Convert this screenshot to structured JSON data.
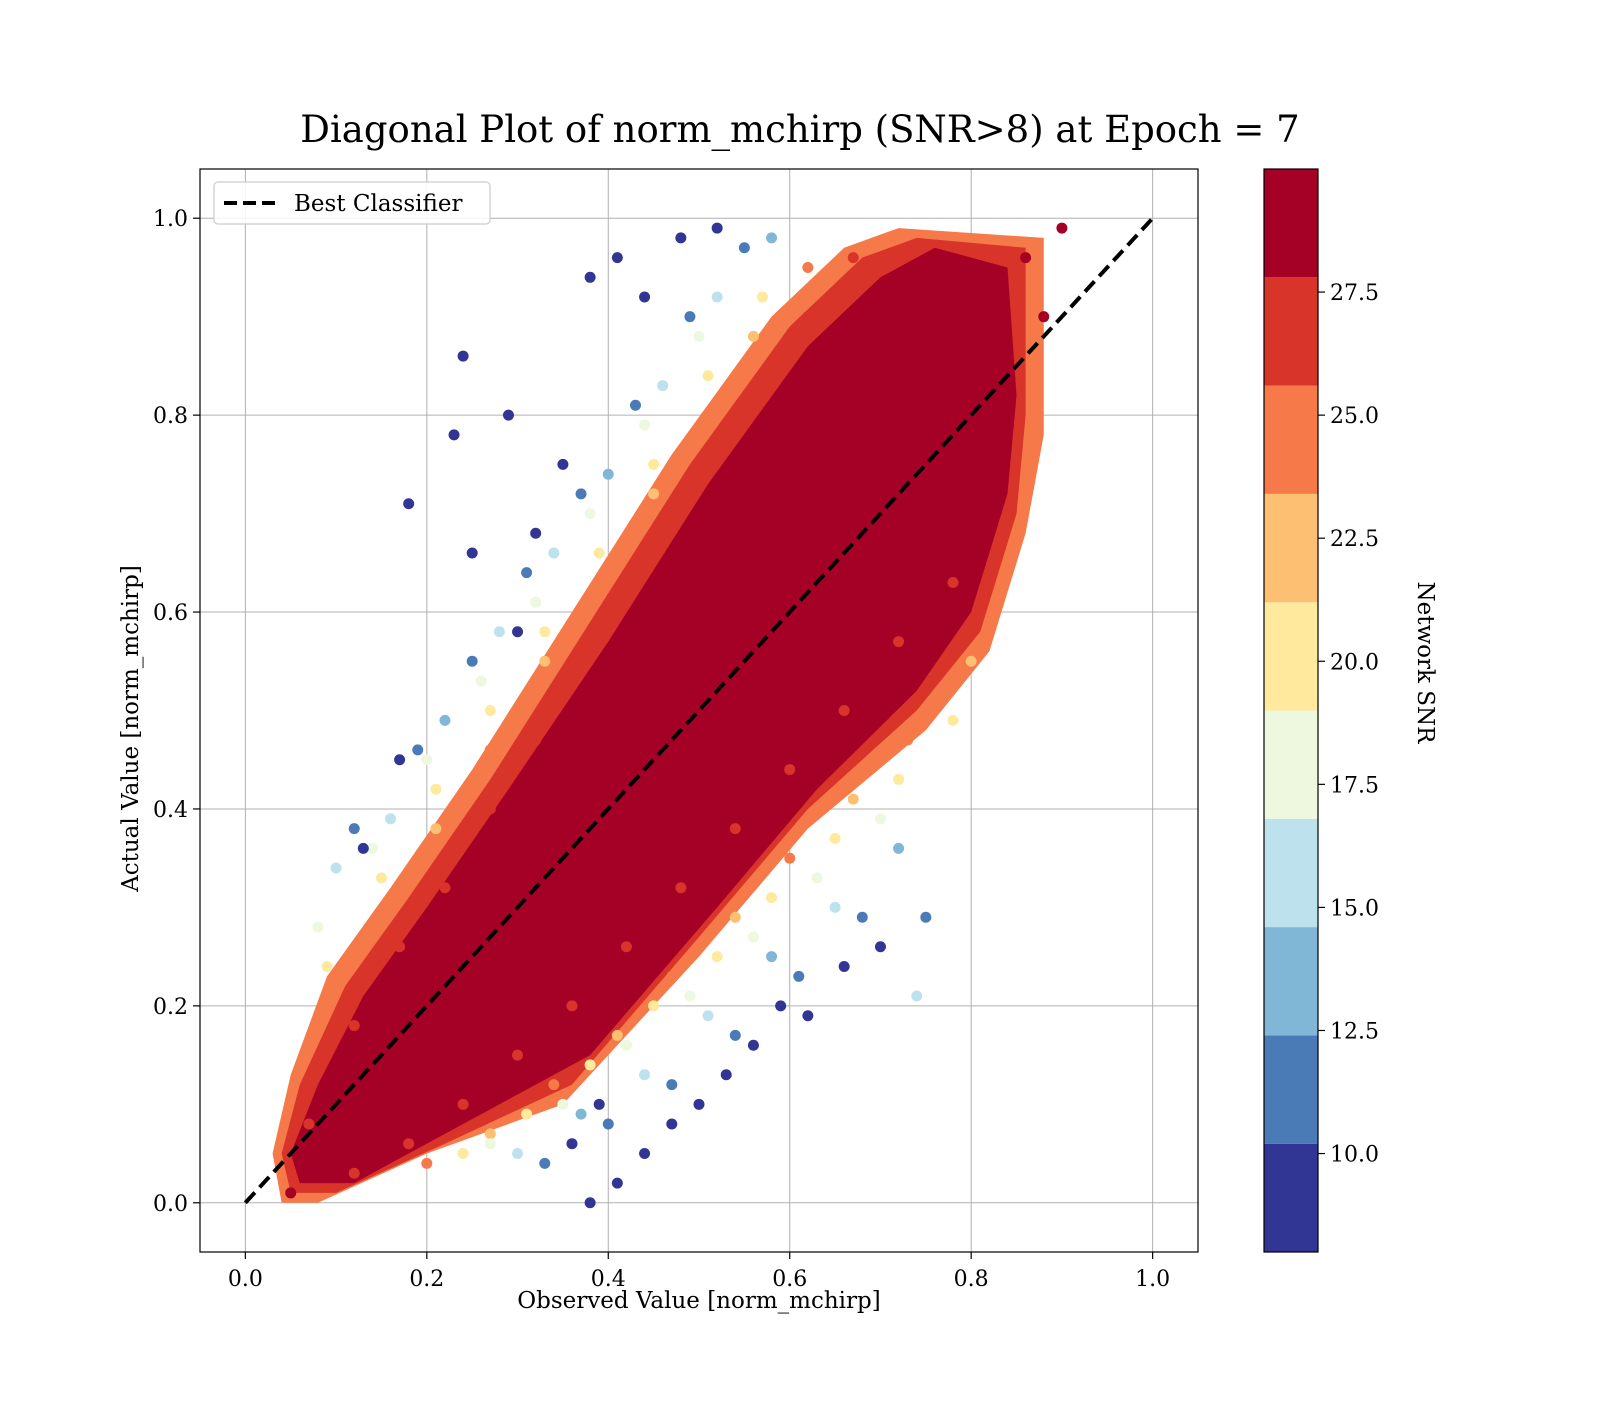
{
  "chart_data": {
    "type": "scatter",
    "title": "Diagonal Plot of norm_mchirp (SNR>8) at Epoch = 7",
    "xlabel": "Observed Value [norm_mchirp]",
    "ylabel": "Actual Value [norm_mchirp]",
    "xlim": [
      -0.05,
      1.05
    ],
    "ylim": [
      -0.05,
      1.05
    ],
    "x_ticks": [
      "0.0",
      "0.2",
      "0.4",
      "0.6",
      "0.8",
      "1.0"
    ],
    "y_ticks": [
      "0.0",
      "0.2",
      "0.4",
      "0.6",
      "0.8",
      "1.0"
    ],
    "grid": true,
    "legend": {
      "position": "top-left",
      "entries": [
        "Best Classifier"
      ]
    },
    "reference_line": {
      "name": "Best Classifier",
      "from": [
        0.0,
        0.0
      ],
      "to": [
        1.0,
        1.0
      ],
      "style": "dashed",
      "color": "#000000"
    },
    "colorbar": {
      "label": "Network SNR",
      "range": [
        8,
        30
      ],
      "bins": [
        {
          "from": 8.0,
          "to": 10.2,
          "color": "#313695"
        },
        {
          "from": 10.2,
          "to": 12.4,
          "color": "#4a7bb7"
        },
        {
          "from": 12.4,
          "to": 14.6,
          "color": "#80b6d6"
        },
        {
          "from": 14.6,
          "to": 16.8,
          "color": "#bde2ee"
        },
        {
          "from": 16.8,
          "to": 19.0,
          "color": "#eef8df"
        },
        {
          "from": 19.0,
          "to": 21.2,
          "color": "#fee99d"
        },
        {
          "from": 21.2,
          "to": 23.4,
          "color": "#fdbf71"
        },
        {
          "from": 23.4,
          "to": 25.6,
          "color": "#f57949"
        },
        {
          "from": 25.6,
          "to": 27.8,
          "color": "#d93429"
        },
        {
          "from": 27.8,
          "to": 30.0,
          "color": "#a50026"
        }
      ],
      "ticks": [
        "10.0",
        "12.5",
        "15.0",
        "17.5",
        "20.0",
        "22.5",
        "25.0",
        "27.5"
      ]
    },
    "series": [
      {
        "color_by": "Network SNR",
        "points": [
          [
            0.05,
            0.01,
            30
          ],
          [
            0.06,
            0.04,
            30
          ],
          [
            0.08,
            0.06,
            29
          ],
          [
            0.1,
            0.12,
            30
          ],
          [
            0.12,
            0.1,
            30
          ],
          [
            0.14,
            0.18,
            30
          ],
          [
            0.15,
            0.13,
            30
          ],
          [
            0.18,
            0.22,
            30
          ],
          [
            0.2,
            0.18,
            30
          ],
          [
            0.22,
            0.26,
            30
          ],
          [
            0.25,
            0.22,
            30
          ],
          [
            0.28,
            0.32,
            30
          ],
          [
            0.3,
            0.26,
            30
          ],
          [
            0.33,
            0.37,
            30
          ],
          [
            0.35,
            0.32,
            30
          ],
          [
            0.38,
            0.43,
            30
          ],
          [
            0.4,
            0.37,
            30
          ],
          [
            0.43,
            0.47,
            30
          ],
          [
            0.45,
            0.42,
            30
          ],
          [
            0.48,
            0.53,
            30
          ],
          [
            0.5,
            0.47,
            30
          ],
          [
            0.53,
            0.58,
            30
          ],
          [
            0.55,
            0.52,
            30
          ],
          [
            0.58,
            0.63,
            30
          ],
          [
            0.6,
            0.57,
            30
          ],
          [
            0.63,
            0.68,
            30
          ],
          [
            0.65,
            0.62,
            30
          ],
          [
            0.68,
            0.73,
            30
          ],
          [
            0.7,
            0.68,
            30
          ],
          [
            0.73,
            0.78,
            30
          ],
          [
            0.75,
            0.73,
            30
          ],
          [
            0.78,
            0.84,
            30
          ],
          [
            0.8,
            0.78,
            30
          ],
          [
            0.82,
            0.9,
            30
          ],
          [
            0.84,
            0.86,
            30
          ],
          [
            0.86,
            0.96,
            29
          ],
          [
            0.88,
            0.9,
            29
          ],
          [
            0.9,
            0.99,
            29
          ],
          [
            0.07,
            0.08,
            27
          ],
          [
            0.12,
            0.18,
            26
          ],
          [
            0.17,
            0.26,
            26
          ],
          [
            0.22,
            0.32,
            27
          ],
          [
            0.27,
            0.4,
            26
          ],
          [
            0.32,
            0.47,
            26
          ],
          [
            0.37,
            0.55,
            27
          ],
          [
            0.42,
            0.62,
            26
          ],
          [
            0.47,
            0.7,
            26
          ],
          [
            0.52,
            0.77,
            27
          ],
          [
            0.57,
            0.83,
            26
          ],
          [
            0.62,
            0.9,
            26
          ],
          [
            0.67,
            0.96,
            27
          ],
          [
            0.12,
            0.03,
            27
          ],
          [
            0.18,
            0.06,
            26
          ],
          [
            0.24,
            0.1,
            26
          ],
          [
            0.3,
            0.15,
            27
          ],
          [
            0.36,
            0.2,
            26
          ],
          [
            0.42,
            0.26,
            26
          ],
          [
            0.48,
            0.32,
            27
          ],
          [
            0.54,
            0.38,
            26
          ],
          [
            0.6,
            0.44,
            26
          ],
          [
            0.66,
            0.5,
            27
          ],
          [
            0.72,
            0.57,
            26
          ],
          [
            0.78,
            0.63,
            26
          ],
          [
            0.84,
            0.7,
            27
          ],
          [
            0.1,
            0.22,
            24
          ],
          [
            0.16,
            0.3,
            24
          ],
          [
            0.21,
            0.38,
            23
          ],
          [
            0.27,
            0.46,
            24
          ],
          [
            0.33,
            0.55,
            23
          ],
          [
            0.39,
            0.63,
            24
          ],
          [
            0.45,
            0.72,
            23
          ],
          [
            0.51,
            0.8,
            24
          ],
          [
            0.56,
            0.88,
            23
          ],
          [
            0.62,
            0.95,
            24
          ],
          [
            0.2,
            0.04,
            24
          ],
          [
            0.27,
            0.07,
            23
          ],
          [
            0.34,
            0.12,
            24
          ],
          [
            0.41,
            0.17,
            23
          ],
          [
            0.47,
            0.23,
            24
          ],
          [
            0.54,
            0.29,
            23
          ],
          [
            0.6,
            0.35,
            24
          ],
          [
            0.67,
            0.41,
            23
          ],
          [
            0.73,
            0.47,
            24
          ],
          [
            0.8,
            0.55,
            23
          ],
          [
            0.09,
            0.24,
            20
          ],
          [
            0.15,
            0.33,
            21
          ],
          [
            0.21,
            0.42,
            20
          ],
          [
            0.27,
            0.5,
            19
          ],
          [
            0.33,
            0.58,
            20
          ],
          [
            0.39,
            0.66,
            21
          ],
          [
            0.45,
            0.75,
            20
          ],
          [
            0.51,
            0.84,
            19
          ],
          [
            0.57,
            0.92,
            20
          ],
          [
            0.24,
            0.05,
            20
          ],
          [
            0.31,
            0.09,
            21
          ],
          [
            0.38,
            0.14,
            20
          ],
          [
            0.45,
            0.2,
            19
          ],
          [
            0.52,
            0.25,
            20
          ],
          [
            0.58,
            0.31,
            21
          ],
          [
            0.65,
            0.37,
            20
          ],
          [
            0.72,
            0.43,
            19
          ],
          [
            0.78,
            0.49,
            20
          ],
          [
            0.08,
            0.28,
            17
          ],
          [
            0.14,
            0.36,
            18
          ],
          [
            0.2,
            0.45,
            17
          ],
          [
            0.26,
            0.53,
            18
          ],
          [
            0.32,
            0.61,
            17
          ],
          [
            0.38,
            0.7,
            18
          ],
          [
            0.44,
            0.79,
            17
          ],
          [
            0.5,
            0.88,
            18
          ],
          [
            0.27,
            0.06,
            17
          ],
          [
            0.35,
            0.1,
            18
          ],
          [
            0.42,
            0.16,
            17
          ],
          [
            0.49,
            0.21,
            18
          ],
          [
            0.56,
            0.27,
            17
          ],
          [
            0.63,
            0.33,
            18
          ],
          [
            0.7,
            0.39,
            17
          ],
          [
            0.1,
            0.34,
            15
          ],
          [
            0.16,
            0.39,
            15
          ],
          [
            0.22,
            0.49,
            14
          ],
          [
            0.28,
            0.58,
            15
          ],
          [
            0.34,
            0.66,
            15
          ],
          [
            0.4,
            0.74,
            14
          ],
          [
            0.46,
            0.83,
            15
          ],
          [
            0.52,
            0.92,
            15
          ],
          [
            0.58,
            0.98,
            14
          ],
          [
            0.3,
            0.05,
            15
          ],
          [
            0.37,
            0.09,
            14
          ],
          [
            0.44,
            0.13,
            15
          ],
          [
            0.51,
            0.19,
            15
          ],
          [
            0.58,
            0.25,
            14
          ],
          [
            0.65,
            0.3,
            15
          ],
          [
            0.72,
            0.36,
            14
          ],
          [
            0.74,
            0.21,
            15
          ],
          [
            0.12,
            0.38,
            12
          ],
          [
            0.19,
            0.46,
            11
          ],
          [
            0.25,
            0.55,
            12
          ],
          [
            0.31,
            0.64,
            11
          ],
          [
            0.37,
            0.72,
            12
          ],
          [
            0.43,
            0.81,
            11
          ],
          [
            0.49,
            0.9,
            12
          ],
          [
            0.55,
            0.97,
            11
          ],
          [
            0.33,
            0.04,
            12
          ],
          [
            0.4,
            0.08,
            11
          ],
          [
            0.47,
            0.12,
            12
          ],
          [
            0.54,
            0.17,
            11
          ],
          [
            0.61,
            0.23,
            12
          ],
          [
            0.68,
            0.29,
            11
          ],
          [
            0.75,
            0.29,
            12
          ],
          [
            0.18,
            0.71,
            9
          ],
          [
            0.24,
            0.86,
            9
          ],
          [
            0.23,
            0.78,
            9
          ],
          [
            0.29,
            0.8,
            9
          ],
          [
            0.17,
            0.45,
            9
          ],
          [
            0.25,
            0.66,
            9
          ],
          [
            0.38,
            0.94,
            9
          ],
          [
            0.41,
            0.96,
            9
          ],
          [
            0.44,
            0.92,
            9
          ],
          [
            0.48,
            0.98,
            9
          ],
          [
            0.52,
            0.99,
            9
          ],
          [
            0.35,
            0.75,
            9
          ],
          [
            0.3,
            0.58,
            9
          ],
          [
            0.32,
            0.68,
            9
          ],
          [
            0.13,
            0.36,
            9
          ],
          [
            0.38,
            0.0,
            9
          ],
          [
            0.41,
            0.02,
            9
          ],
          [
            0.44,
            0.05,
            9
          ],
          [
            0.47,
            0.08,
            9
          ],
          [
            0.5,
            0.1,
            9
          ],
          [
            0.53,
            0.13,
            9
          ],
          [
            0.56,
            0.16,
            9
          ],
          [
            0.59,
            0.2,
            9
          ],
          [
            0.62,
            0.19,
            9
          ],
          [
            0.66,
            0.24,
            9
          ],
          [
            0.7,
            0.26,
            9
          ],
          [
            0.36,
            0.06,
            9
          ],
          [
            0.39,
            0.1,
            9
          ]
        ]
      }
    ]
  }
}
